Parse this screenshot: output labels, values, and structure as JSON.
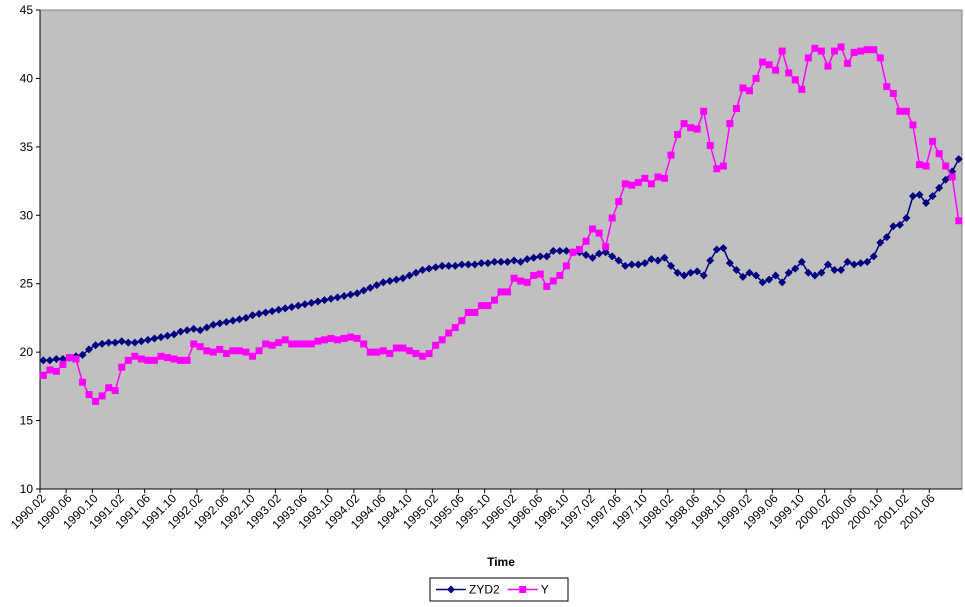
{
  "chart_data": {
    "type": "line",
    "x_label": "Time",
    "categories": [
      "1990.02",
      null,
      null,
      null,
      "1990.06",
      null,
      null,
      null,
      "1990.10",
      null,
      null,
      null,
      "1991.02",
      null,
      null,
      null,
      "1991.06",
      null,
      null,
      null,
      "1991.10",
      null,
      null,
      null,
      "1992.02",
      null,
      null,
      null,
      "1992.06",
      null,
      null,
      null,
      "1992.10",
      null,
      null,
      null,
      "1993.02",
      null,
      null,
      null,
      "1993.06",
      null,
      null,
      null,
      "1993.10",
      null,
      null,
      null,
      "1994.02",
      null,
      null,
      null,
      "1994.06",
      null,
      null,
      null,
      "1994.10",
      null,
      null,
      null,
      "1995.02",
      null,
      null,
      null,
      "1995.06",
      null,
      null,
      null,
      "1995.10",
      null,
      null,
      null,
      "1996.02",
      null,
      null,
      null,
      "1996.06",
      null,
      null,
      null,
      "1996.10",
      null,
      null,
      null,
      "1997.02",
      null,
      null,
      null,
      "1997.06",
      null,
      null,
      null,
      "1997.10",
      null,
      null,
      null,
      "1998.02",
      null,
      null,
      null,
      "1998.06",
      null,
      null,
      null,
      "1998.10",
      null,
      null,
      null,
      "1999.02",
      null,
      null,
      null,
      "1999.06",
      null,
      null,
      null,
      "1999.10",
      null,
      null,
      null,
      "2000.02",
      null,
      null,
      null,
      "2000.06",
      null,
      null,
      null,
      "2000.10",
      null,
      null,
      null,
      "2001.02",
      null,
      null,
      null,
      "2001.06",
      null,
      null,
      null,
      null
    ],
    "series": [
      {
        "name": "ZYD2",
        "color": "#000080",
        "marker": "diamond",
        "values": [
          19.4,
          19.4,
          19.5,
          19.5,
          19.6,
          19.7,
          19.8,
          20.2,
          20.5,
          20.6,
          20.7,
          20.7,
          20.8,
          20.7,
          20.7,
          20.8,
          20.9,
          21.0,
          21.1,
          21.2,
          21.3,
          21.5,
          21.6,
          21.7,
          21.6,
          21.8,
          22.0,
          22.1,
          22.2,
          22.3,
          22.4,
          22.5,
          22.7,
          22.8,
          22.9,
          23.0,
          23.1,
          23.2,
          23.3,
          23.4,
          23.5,
          23.6,
          23.7,
          23.8,
          23.9,
          24.0,
          24.1,
          24.2,
          24.3,
          24.5,
          24.7,
          24.9,
          25.1,
          25.2,
          25.3,
          25.4,
          25.6,
          25.8,
          26.0,
          26.1,
          26.2,
          26.3,
          26.3,
          26.3,
          26.4,
          26.4,
          26.4,
          26.5,
          26.5,
          26.6,
          26.6,
          26.6,
          26.7,
          26.6,
          26.8,
          26.9,
          27.0,
          27.0,
          27.4,
          27.4,
          27.4,
          27.3,
          27.3,
          27.1,
          26.9,
          27.2,
          27.3,
          27.0,
          26.7,
          26.3,
          26.4,
          26.4,
          26.5,
          26.8,
          26.7,
          26.9,
          26.3,
          25.8,
          25.6,
          25.8,
          25.9,
          25.6,
          26.7,
          27.5,
          27.6,
          26.5,
          26.0,
          25.5,
          25.8,
          25.6,
          25.1,
          25.3,
          25.6,
          25.1,
          25.8,
          26.1,
          26.6,
          25.8,
          25.6,
          25.8,
          26.4,
          26.0,
          26.0,
          26.6,
          26.4,
          26.5,
          26.6,
          27.0,
          28.0,
          28.4,
          29.2,
          29.3,
          29.8,
          31.4,
          31.5,
          30.9,
          31.4,
          32.0,
          32.6,
          33.2,
          34.1
        ]
      },
      {
        "name": "Y",
        "color": "#ff00ff",
        "marker": "square",
        "values": [
          18.3,
          18.7,
          18.6,
          19.1,
          19.6,
          19.5,
          17.8,
          16.9,
          16.4,
          16.8,
          17.4,
          17.2,
          18.9,
          19.4,
          19.7,
          19.5,
          19.4,
          19.4,
          19.7,
          19.6,
          19.5,
          19.4,
          19.4,
          20.6,
          20.4,
          20.1,
          20.0,
          20.2,
          19.9,
          20.1,
          20.1,
          20.0,
          19.7,
          20.1,
          20.6,
          20.5,
          20.7,
          20.9,
          20.6,
          20.6,
          20.6,
          20.6,
          20.8,
          20.9,
          21.0,
          20.9,
          21.0,
          21.1,
          21.0,
          20.6,
          20.0,
          20.0,
          20.1,
          19.9,
          20.3,
          20.3,
          20.1,
          19.9,
          19.7,
          19.9,
          20.5,
          20.9,
          21.4,
          21.8,
          22.3,
          22.9,
          22.9,
          23.4,
          23.4,
          23.8,
          24.4,
          24.4,
          25.4,
          25.2,
          25.1,
          25.6,
          25.7,
          24.8,
          25.2,
          25.6,
          26.3,
          27.3,
          27.5,
          28.1,
          29.0,
          28.7,
          27.7,
          29.8,
          31.0,
          32.3,
          32.2,
          32.4,
          32.7,
          32.3,
          32.8,
          32.7,
          34.4,
          35.9,
          36.7,
          36.4,
          36.3,
          37.6,
          35.1,
          33.4,
          33.6,
          36.7,
          37.8,
          39.3,
          39.1,
          40.0,
          41.2,
          41.0,
          40.6,
          42.0,
          40.4,
          39.9,
          39.2,
          41.5,
          42.2,
          42.0,
          40.9,
          42.0,
          42.3,
          41.1,
          41.9,
          42.0,
          42.1,
          42.1,
          41.5,
          39.4,
          38.9,
          37.6,
          37.6,
          36.6,
          33.7,
          33.6,
          35.4,
          34.5,
          33.6,
          32.8,
          29.6
        ]
      }
    ],
    "ylim": [
      10,
      45
    ],
    "yticks": [
      10,
      15,
      20,
      25,
      30,
      35,
      40,
      45
    ],
    "grid": false,
    "legend": "bottom",
    "plot_background": "#c0c0c0"
  }
}
